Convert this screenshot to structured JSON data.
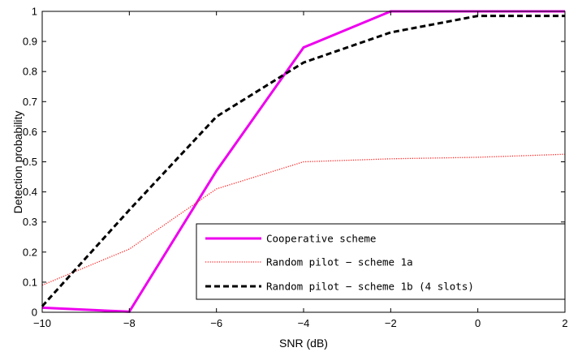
{
  "chart_data": {
    "type": "line",
    "xlabel": "SNR (dB)",
    "ylabel": "Detection probability",
    "xlim": [
      -10,
      2
    ],
    "ylim": [
      0,
      1
    ],
    "xticks": [
      -10,
      -8,
      -6,
      -4,
      -2,
      0,
      2
    ],
    "xtick_labels": [
      "−10",
      "−8",
      "−6",
      "−4",
      "−2",
      "0",
      "2"
    ],
    "yticks": [
      0,
      0.1,
      0.2,
      0.3,
      0.4,
      0.5,
      0.6,
      0.7,
      0.8,
      0.9,
      1
    ],
    "ytick_labels": [
      "0",
      "0.1",
      "0.2",
      "0.3",
      "0.4",
      "0.5",
      "0.6",
      "0.7",
      "0.8",
      "0.9",
      "1"
    ],
    "grid": false,
    "legend_position": "bottom-right",
    "x": [
      -10,
      -8,
      -6,
      -4,
      -2,
      0,
      2
    ],
    "series": [
      {
        "name": "Cooperative scheme",
        "color": "#ee00ee",
        "style": "solid",
        "values": [
          0.015,
          0.002,
          0.47,
          0.88,
          1.0,
          1.0,
          1.0
        ]
      },
      {
        "name": "Random pilot − scheme 1a",
        "color": "#ff2020",
        "style": "dotted",
        "values": [
          0.09,
          0.21,
          0.41,
          0.5,
          0.51,
          0.515,
          0.525
        ]
      },
      {
        "name": "Random pilot − scheme 1b (4 slots)",
        "color": "#000000",
        "style": "dashed",
        "values": [
          0.02,
          0.34,
          0.65,
          0.83,
          0.93,
          0.985,
          0.985
        ]
      }
    ]
  }
}
